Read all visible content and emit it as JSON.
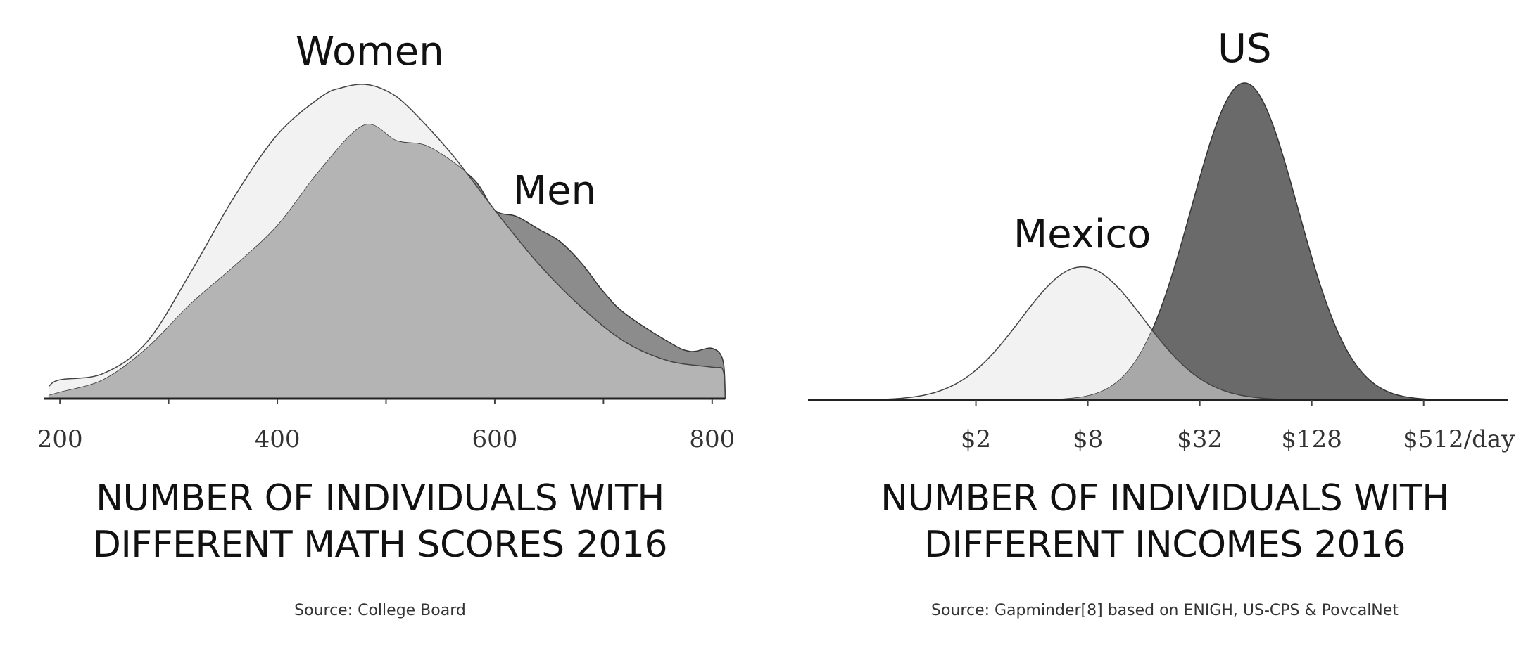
{
  "chart_data": [
    {
      "type": "area",
      "title_lines": [
        "NUMBER OF INDIVIDUALS WITH",
        "DIFFERENT MATH SCORES 2016"
      ],
      "source": "Source: College Board",
      "x_ticks": [
        "200",
        "400",
        "600",
        "800"
      ],
      "x_tick_values": [
        200,
        400,
        600,
        800
      ],
      "xlim": [
        185,
        815
      ],
      "ylim": [
        0,
        1
      ],
      "series": [
        {
          "name": "Women",
          "color": "#f2f2f2",
          "stroke": "#444444",
          "x": [
            190,
            200,
            240,
            280,
            320,
            360,
            400,
            440,
            460,
            480,
            500,
            520,
            560,
            600,
            640,
            680,
            720,
            760,
            800,
            810,
            812
          ],
          "y": [
            0.04,
            0.06,
            0.08,
            0.18,
            0.4,
            0.64,
            0.84,
            0.96,
            0.99,
            1.0,
            0.98,
            0.93,
            0.78,
            0.6,
            0.43,
            0.29,
            0.18,
            0.12,
            0.1,
            0.09,
            0.0
          ]
        },
        {
          "name": "Men",
          "color": "#8c8c8c",
          "stroke": "#333333",
          "x": [
            190,
            200,
            240,
            280,
            320,
            360,
            400,
            440,
            480,
            510,
            540,
            580,
            600,
            620,
            640,
            660,
            680,
            700,
            720,
            760,
            780,
            800,
            810,
            812
          ],
          "y": [
            0.01,
            0.02,
            0.06,
            0.16,
            0.3,
            0.42,
            0.55,
            0.73,
            0.87,
            0.82,
            0.8,
            0.7,
            0.6,
            0.58,
            0.54,
            0.5,
            0.43,
            0.34,
            0.27,
            0.18,
            0.15,
            0.16,
            0.12,
            0.0
          ]
        }
      ],
      "overlap_color": "#b4b4b4"
    },
    {
      "type": "area",
      "title_lines": [
        "NUMBER OF INDIVIDUALS WITH",
        "DIFFERENT INCOMES 2016"
      ],
      "source": "Source: Gapminder[8] based on ENIGH, US-CPS & PovcalNet",
      "x_ticks": [
        "$2",
        "$8",
        "$32",
        "$128",
        "$512/day"
      ],
      "x_tick_values": [
        1,
        3,
        5,
        7,
        9
      ],
      "x_scale": "log2",
      "xlim": [
        -2,
        10.5
      ],
      "ylim": [
        0,
        1
      ],
      "series": [
        {
          "name": "Mexico",
          "color": "#f2f2f2",
          "stroke": "#444444",
          "mean": 2.9,
          "sd": 1.1,
          "peak": 0.42
        },
        {
          "name": "US",
          "color": "#6a6a6a",
          "stroke": "#333333",
          "mean": 5.8,
          "sd": 0.95,
          "peak": 1.0
        }
      ],
      "overlap_color": "#a8a8a8"
    }
  ]
}
